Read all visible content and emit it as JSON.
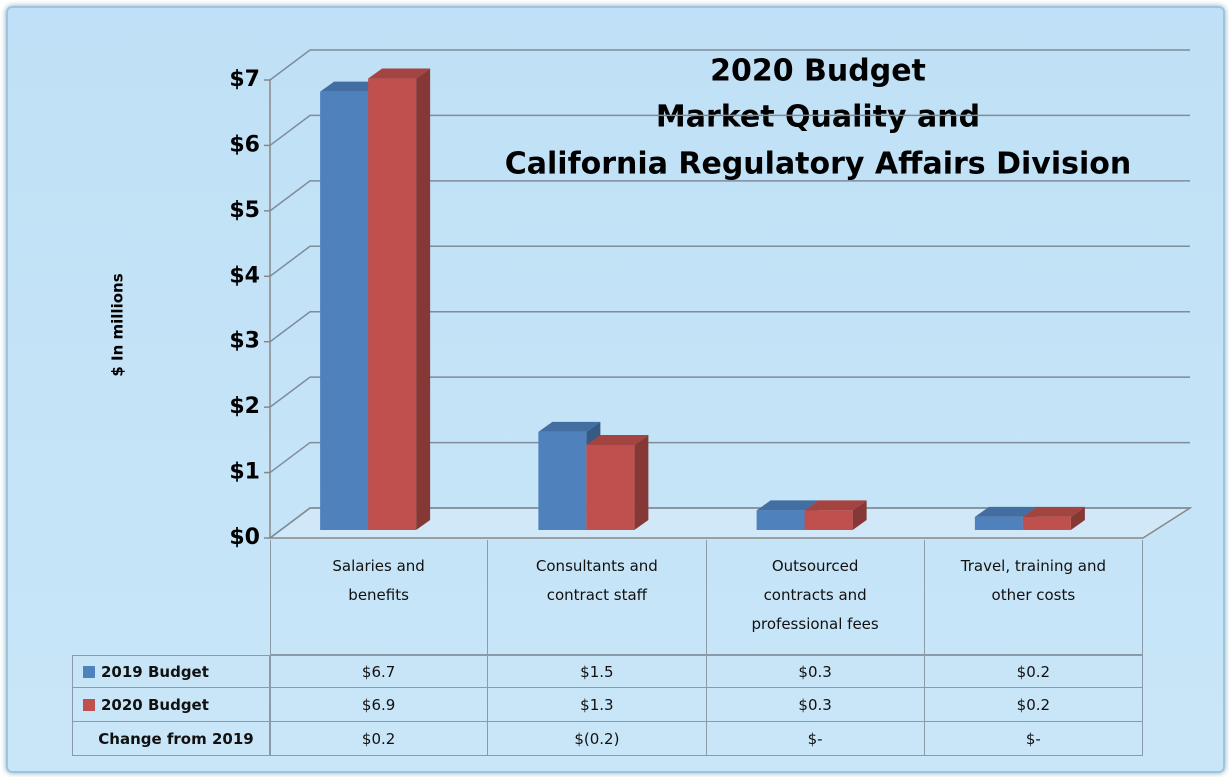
{
  "chart_data": {
    "type": "bar3d",
    "title": [
      "2020 Budget",
      "Market Quality and",
      "California Regulatory Affairs Division"
    ],
    "y_label": "$ In millions",
    "categories": [
      "Salaries and benefits",
      "Consultants and contract staff",
      "Outsourced contracts and professional fees",
      "Travel, training and other costs"
    ],
    "series": [
      {
        "name": "2019 Budget",
        "color": "#4f81bd",
        "values": [
          6.7,
          1.5,
          0.3,
          0.2
        ],
        "value_labels": [
          "$6.7",
          "$1.5",
          "$0.3",
          "$0.2"
        ]
      },
      {
        "name": "2020 Budget",
        "color": "#c0504d",
        "values": [
          6.9,
          1.3,
          0.3,
          0.2
        ],
        "value_labels": [
          "$6.9",
          "$1.3",
          "$0.3",
          "$0.2"
        ]
      }
    ],
    "change": {
      "name": "Change from 2019",
      "values": [
        0.2,
        -0.2,
        0,
        0
      ],
      "value_labels": [
        "$0.2",
        "$(0.2)",
        "$-",
        "$-"
      ]
    },
    "ylim": [
      0,
      7
    ],
    "yticks": [
      {
        "value": 0,
        "label": "$0"
      },
      {
        "value": 1,
        "label": "$1"
      },
      {
        "value": 2,
        "label": "$2"
      },
      {
        "value": 3,
        "label": "$3"
      },
      {
        "value": 4,
        "label": "$4"
      },
      {
        "value": 5,
        "label": "$5"
      },
      {
        "value": 6,
        "label": "$6"
      },
      {
        "value": 7,
        "label": "$7"
      }
    ],
    "grid": true
  }
}
